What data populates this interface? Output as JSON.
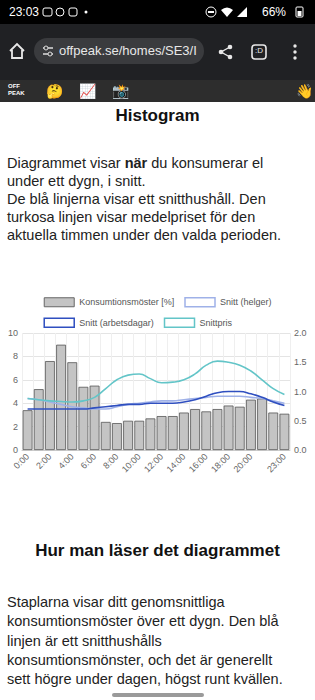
{
  "status_bar": {
    "time": "23:03",
    "battery": "66%"
  },
  "browser": {
    "url": "offpeak.se/homes/SE3/I",
    "tab_count": ":D"
  },
  "toolbar": {
    "logo": [
      "OFF",
      "PEAK"
    ],
    "emojis": [
      "🤔",
      "📈",
      "📸"
    ],
    "right_emoji": "👋"
  },
  "section1": {
    "heading": "Histogram",
    "lines": [
      [
        {
          "text": "Diagrammet visar "
        },
        {
          "text": "när",
          "bold": true
        },
        {
          "text": " du konsumerar el"
        }
      ],
      "under ett dygn, i snitt.",
      "De blå linjerna visar ett snitthushåll. Den",
      "turkosa linjen visar medelpriset för den",
      "aktuella timmen under den valda perioden."
    ]
  },
  "chart_data": {
    "type": "bar",
    "categories": [
      "0:00",
      null,
      "2:00",
      null,
      "4:00",
      null,
      "6:00",
      null,
      "8:00",
      null,
      "10:00",
      null,
      "12:00",
      null,
      "14:00",
      null,
      "16:00",
      null,
      "18:00",
      null,
      "20:00",
      null,
      null,
      "23:00"
    ],
    "series": [
      {
        "name": "Konsumtionsmöster [%]",
        "type": "bar",
        "color": "#c4c4c4",
        "values": [
          3.4,
          5.2,
          7.6,
          9.0,
          7.5,
          5.4,
          5.5,
          2.4,
          2.3,
          2.5,
          2.5,
          2.7,
          2.9,
          2.9,
          3.2,
          3.5,
          3.3,
          3.5,
          3.8,
          3.7,
          4.3,
          4.4,
          3.2,
          3.1
        ]
      },
      {
        "name": "Snitt (helger)",
        "type": "line",
        "color": "#9fb1e8",
        "values": [
          4.4,
          4.3,
          4.1,
          3.9,
          3.7,
          3.6,
          3.5,
          3.5,
          3.7,
          3.9,
          4.0,
          4.1,
          4.2,
          4.2,
          4.3,
          4.4,
          4.5,
          4.6,
          4.6,
          4.6,
          4.5,
          4.4,
          4.2,
          4.0
        ]
      },
      {
        "name": "Snitt (arbetsdagar)",
        "type": "line",
        "color": "#2f4fc0",
        "values": [
          3.5,
          3.5,
          3.5,
          3.5,
          3.5,
          3.5,
          3.6,
          3.7,
          3.8,
          3.9,
          3.9,
          4.0,
          4.0,
          4.0,
          4.1,
          4.3,
          4.6,
          4.9,
          5.0,
          5.0,
          4.8,
          4.5,
          4.1,
          3.8
        ]
      },
      {
        "name": "Snittpris",
        "type": "line",
        "color": "#63c5c8",
        "axis": "y2",
        "values": [
          0.88,
          0.86,
          0.84,
          0.83,
          0.82,
          0.84,
          0.9,
          1.05,
          1.2,
          1.28,
          1.3,
          1.22,
          1.15,
          1.16,
          1.2,
          1.3,
          1.45,
          1.52,
          1.5,
          1.45,
          1.35,
          1.2,
          1.05,
          0.95
        ]
      }
    ],
    "ylim": [
      0,
      10
    ],
    "yticks": [
      0,
      2,
      4,
      6,
      8,
      10
    ],
    "y2lim": [
      0,
      2
    ],
    "y2ticks": [
      {
        "value": 0,
        "label": "0.0"
      },
      {
        "value": 0.5,
        "label": "0.5"
      },
      {
        "value": 1,
        "label": "1.0"
      },
      {
        "value": 1.5,
        "label": "1.5"
      },
      {
        "value": 2,
        "label": "2.0"
      }
    ],
    "grid": true,
    "legend": "top"
  },
  "section2": {
    "heading": "Hur man läser det diagrammet",
    "lines": [
      "Staplarna visar ditt genomsnittliga",
      "konsumtionsmöster över ett dygn. Den blå",
      "linjen är ett snitthushålls",
      "konsumtionsmönster, och det är generellt",
      "sett högre under dagen, högst runt kvällen."
    ]
  }
}
